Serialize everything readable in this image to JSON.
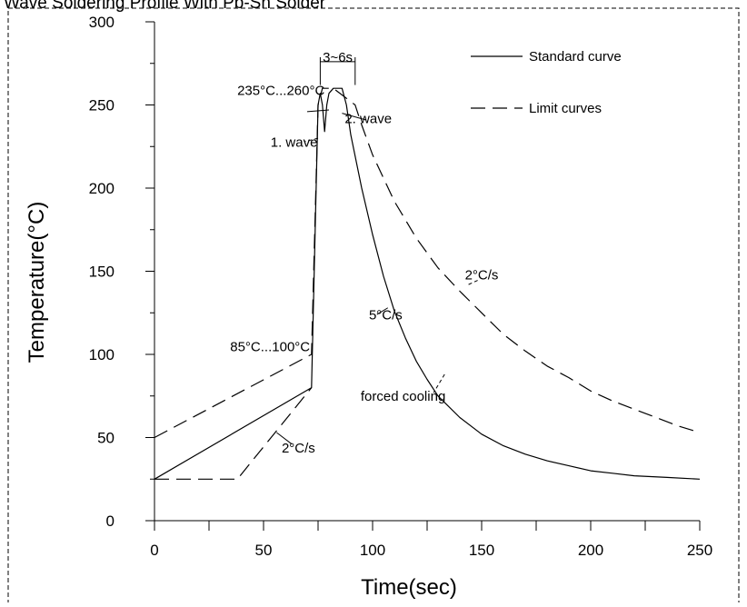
{
  "chart_data": {
    "type": "line",
    "title": "Wave Soldering Profile With Pb-Sn Solder",
    "xlabel": "Time(sec)",
    "ylabel": "Temperature(°C)",
    "xlim": [
      0,
      250
    ],
    "ylim": [
      0,
      300
    ],
    "x_ticks": [
      0,
      50,
      100,
      150,
      200,
      250
    ],
    "y_ticks": [
      0,
      50,
      100,
      150,
      200,
      250,
      300
    ],
    "grid": false,
    "legend_position": "top-right",
    "legend": [
      {
        "label": "Standard curve",
        "style": "solid"
      },
      {
        "label": "Limit curves",
        "style": "dashed"
      }
    ],
    "series": [
      {
        "style": "solid",
        "points": [
          [
            0,
            25
          ],
          [
            72,
            80
          ],
          [
            75,
            250
          ],
          [
            76,
            257
          ],
          [
            77,
            250
          ],
          [
            78,
            234
          ],
          [
            79,
            250
          ],
          [
            80,
            257
          ],
          [
            82,
            260
          ],
          [
            86,
            260
          ],
          [
            88,
            250
          ],
          [
            90,
            232
          ],
          [
            95,
            200
          ],
          [
            100,
            172
          ],
          [
            105,
            147
          ],
          [
            110,
            126
          ],
          [
            115,
            110
          ],
          [
            120,
            96
          ],
          [
            125,
            85
          ],
          [
            130,
            75
          ],
          [
            140,
            62
          ],
          [
            150,
            52
          ],
          [
            160,
            45
          ],
          [
            170,
            40
          ],
          [
            180,
            36
          ],
          [
            190,
            33
          ],
          [
            200,
            30
          ],
          [
            210,
            28.5
          ],
          [
            220,
            27
          ],
          [
            235,
            26
          ],
          [
            250,
            25
          ]
        ]
      },
      {
        "style": "dashed",
        "points": [
          [
            0,
            50
          ],
          [
            72,
            100
          ],
          [
            75,
            250
          ],
          [
            77,
            260
          ],
          [
            82,
            260
          ],
          [
            92,
            250
          ],
          [
            95,
            238
          ],
          [
            100,
            220
          ],
          [
            110,
            192
          ],
          [
            120,
            170
          ],
          [
            130,
            152
          ],
          [
            140,
            138
          ],
          [
            150,
            125
          ],
          [
            160,
            112
          ],
          [
            170,
            102
          ],
          [
            180,
            93
          ],
          [
            190,
            86
          ],
          [
            200,
            78
          ],
          [
            210,
            72
          ],
          [
            220,
            67
          ],
          [
            230,
            62
          ],
          [
            240,
            57
          ],
          [
            250,
            53
          ]
        ]
      },
      {
        "style": "dashed",
        "points": [
          [
            0,
            25
          ],
          [
            38,
            25
          ],
          [
            72,
            80
          ]
        ]
      }
    ],
    "annotations": [
      {
        "text": "3~6s",
        "x": 84,
        "y": 276
      },
      {
        "text": "235°C...260°C",
        "x": 58,
        "y": 256
      },
      {
        "text": "1. wave",
        "x": 64,
        "y": 225
      },
      {
        "text": "2. wave",
        "x": 98,
        "y": 239
      },
      {
        "text": "2°C/s",
        "x": 150,
        "y": 145
      },
      {
        "text": "5°C/s",
        "x": 106,
        "y": 121
      },
      {
        "text": "85°C...100°C",
        "x": 53,
        "y": 102
      },
      {
        "text": "forced cooling",
        "x": 114,
        "y": 72
      },
      {
        "text": "2°C/s",
        "x": 66,
        "y": 41
      }
    ]
  }
}
